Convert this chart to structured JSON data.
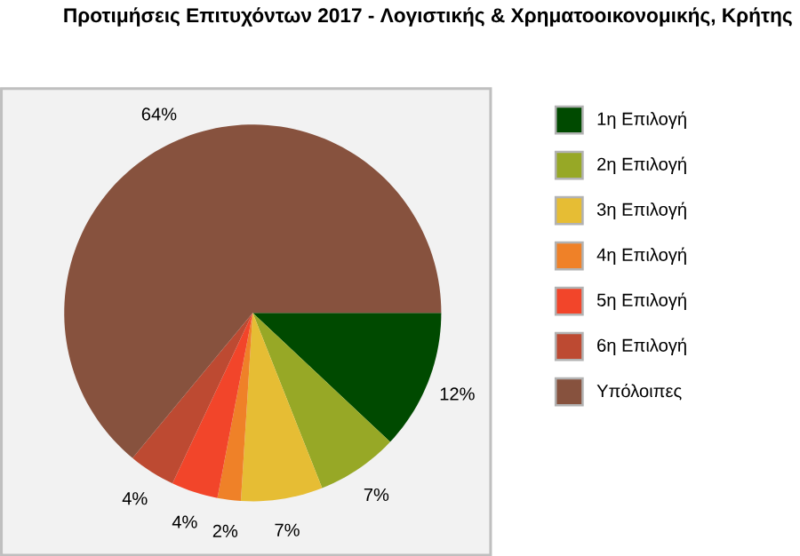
{
  "chart_data": {
    "type": "pie",
    "title": "Προτιμήσεις Επιτυχόντων 2017 - Λογιστικής & Χρηματοοικονομικής, Κρήτης",
    "categories": [
      "1η Επιλογή",
      "2η Επιλογή",
      "3η Επιλογή",
      "4η Επιλογή",
      "5η Επιλογή",
      "6η Επιλογή",
      "Υπόλοιπες"
    ],
    "values": [
      12,
      7,
      7,
      2,
      4,
      4,
      64
    ],
    "value_labels": [
      "12%",
      "7%",
      "7%",
      "2%",
      "4%",
      "4%",
      "64%"
    ],
    "colors": [
      "#004a00",
      "#97a826",
      "#e6bd34",
      "#ef8128",
      "#f2452a",
      "#bd4a32",
      "#87523e"
    ],
    "legend": "right"
  }
}
